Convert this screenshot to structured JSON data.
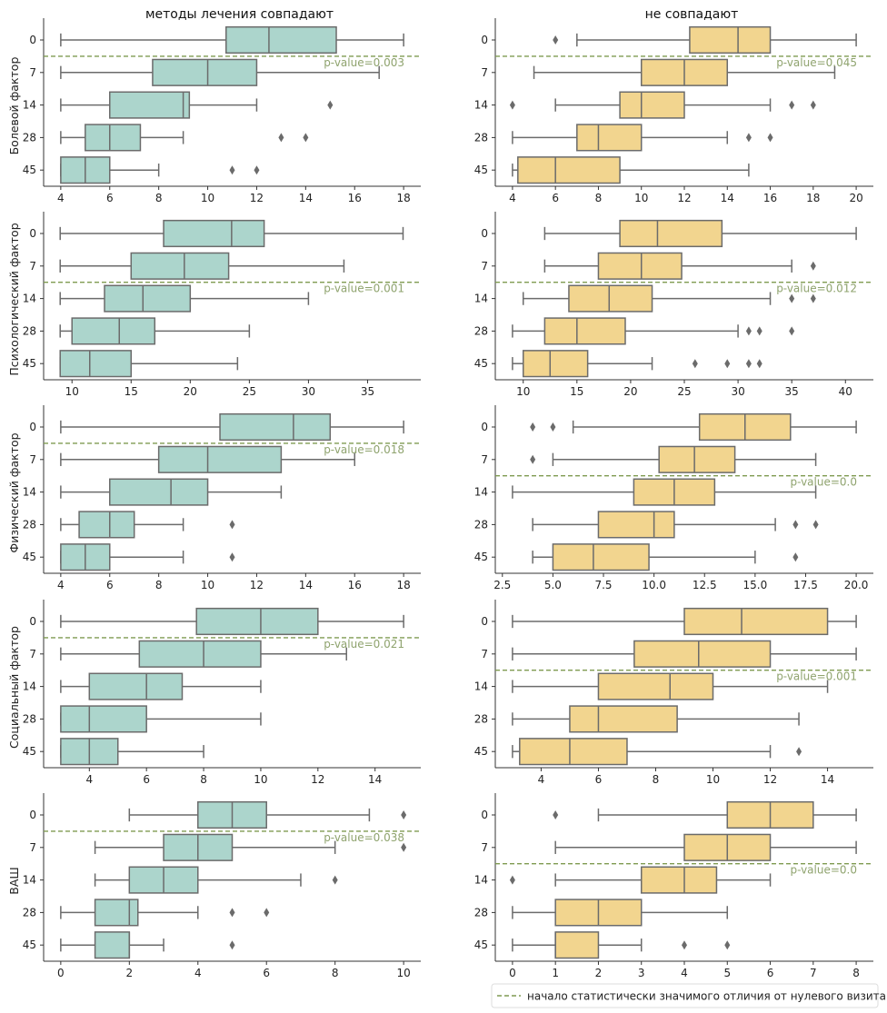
{
  "colors": {
    "left_box": "#acd5cc",
    "right_box": "#f2d58f",
    "edge": "#6b6b6b",
    "significance_line": "#7f9a50",
    "pvalue_text": "#8fa36e"
  },
  "legend": {
    "label": "начало статистически значимого отличия от нулевого визита",
    "placement": "bottom-right"
  },
  "chart_data": [
    {
      "type": "box",
      "column": "left",
      "title": "методы лечения совпадают",
      "ylabel": "Болевой фактор",
      "categories": [
        "0",
        "7",
        "14",
        "28",
        "45"
      ],
      "xlim": [
        3.3,
        18.7
      ],
      "xticks": [
        4,
        6,
        8,
        10,
        12,
        14,
        16,
        18
      ],
      "significance_after": "0",
      "pvalue_label": "p-value=0.003",
      "boxes": [
        {
          "whislo": 4,
          "q1": 10.75,
          "med": 12.5,
          "q3": 15.25,
          "whishi": 18,
          "fliers": []
        },
        {
          "whislo": 4,
          "q1": 7.75,
          "med": 10,
          "q3": 12,
          "whishi": 17,
          "fliers": []
        },
        {
          "whislo": 4,
          "q1": 6,
          "med": 9,
          "q3": 9.25,
          "whishi": 12,
          "fliers": [
            15
          ]
        },
        {
          "whislo": 4,
          "q1": 5,
          "med": 6,
          "q3": 7.25,
          "whishi": 9,
          "fliers": [
            13,
            14
          ]
        },
        {
          "whislo": 4,
          "q1": 4,
          "med": 5,
          "q3": 6,
          "whishi": 8,
          "fliers": [
            11,
            12
          ]
        }
      ]
    },
    {
      "type": "box",
      "column": "right",
      "title": "не совпадают",
      "ylabel": "",
      "categories": [
        "0",
        "7",
        "14",
        "28",
        "45"
      ],
      "xlim": [
        3.2,
        20.8
      ],
      "xticks": [
        4,
        6,
        8,
        10,
        12,
        14,
        16,
        18,
        20
      ],
      "significance_after": "0",
      "pvalue_label": "p-value=0.045",
      "boxes": [
        {
          "whislo": 7,
          "q1": 12.25,
          "med": 14.5,
          "q3": 16,
          "whishi": 20,
          "fliers": [
            6
          ]
        },
        {
          "whislo": 5,
          "q1": 10,
          "med": 12,
          "q3": 14,
          "whishi": 19,
          "fliers": []
        },
        {
          "whislo": 6,
          "q1": 9,
          "med": 10,
          "q3": 12,
          "whishi": 16,
          "fliers": [
            4,
            17,
            18
          ]
        },
        {
          "whislo": 4,
          "q1": 7,
          "med": 8,
          "q3": 10,
          "whishi": 14,
          "fliers": [
            15,
            16
          ]
        },
        {
          "whislo": 4,
          "q1": 4.25,
          "med": 6,
          "q3": 9,
          "whishi": 15,
          "fliers": []
        }
      ]
    },
    {
      "type": "box",
      "column": "left",
      "title": "",
      "ylabel": "Психологический фактор",
      "categories": [
        "0",
        "7",
        "14",
        "28",
        "45"
      ],
      "xlim": [
        7.6,
        39.5
      ],
      "xticks": [
        10,
        15,
        20,
        25,
        30,
        35
      ],
      "significance_after": "7",
      "pvalue_label": "p-value=0.001",
      "boxes": [
        {
          "whislo": 9,
          "q1": 17.75,
          "med": 23.5,
          "q3": 26.25,
          "whishi": 38,
          "fliers": []
        },
        {
          "whislo": 9,
          "q1": 15,
          "med": 19.5,
          "q3": 23.25,
          "whishi": 33,
          "fliers": []
        },
        {
          "whislo": 9,
          "q1": 12.75,
          "med": 16,
          "q3": 20,
          "whishi": 30,
          "fliers": []
        },
        {
          "whislo": 9,
          "q1": 10,
          "med": 14,
          "q3": 17,
          "whishi": 25,
          "fliers": []
        },
        {
          "whislo": 9,
          "q1": 9,
          "med": 11.5,
          "q3": 15,
          "whishi": 24,
          "fliers": []
        }
      ]
    },
    {
      "type": "box",
      "column": "right",
      "title": "",
      "ylabel": "",
      "categories": [
        "0",
        "7",
        "14",
        "28",
        "45"
      ],
      "xlim": [
        7.4,
        42.6
      ],
      "xticks": [
        10,
        15,
        20,
        25,
        30,
        35,
        40
      ],
      "significance_after": "7",
      "pvalue_label": "p-value=0.012",
      "boxes": [
        {
          "whislo": 12,
          "q1": 19,
          "med": 22.5,
          "q3": 28.5,
          "whishi": 41,
          "fliers": []
        },
        {
          "whislo": 12,
          "q1": 17,
          "med": 21,
          "q3": 24.75,
          "whishi": 35,
          "fliers": [
            37
          ]
        },
        {
          "whislo": 10,
          "q1": 14.25,
          "med": 18,
          "q3": 22,
          "whishi": 33,
          "fliers": [
            35,
            37
          ]
        },
        {
          "whislo": 9,
          "q1": 12,
          "med": 15,
          "q3": 19.5,
          "whishi": 30,
          "fliers": [
            31,
            32,
            35
          ]
        },
        {
          "whislo": 9,
          "q1": 10,
          "med": 12.5,
          "q3": 16,
          "whishi": 22,
          "fliers": [
            26,
            29,
            31,
            32
          ]
        }
      ]
    },
    {
      "type": "box",
      "column": "left",
      "title": "",
      "ylabel": "Физический фактор",
      "categories": [
        "0",
        "7",
        "14",
        "28",
        "45"
      ],
      "xlim": [
        3.3,
        18.7
      ],
      "xticks": [
        4,
        6,
        8,
        10,
        12,
        14,
        16,
        18
      ],
      "significance_after": "0",
      "pvalue_label": "p-value=0.018",
      "boxes": [
        {
          "whislo": 4,
          "q1": 10.5,
          "med": 13.5,
          "q3": 15,
          "whishi": 18,
          "fliers": []
        },
        {
          "whislo": 4,
          "q1": 8,
          "med": 10,
          "q3": 13,
          "whishi": 16,
          "fliers": []
        },
        {
          "whislo": 4,
          "q1": 6,
          "med": 8.5,
          "q3": 10,
          "whishi": 13,
          "fliers": []
        },
        {
          "whislo": 4,
          "q1": 4.75,
          "med": 6,
          "q3": 7,
          "whishi": 9,
          "fliers": [
            11
          ]
        },
        {
          "whislo": 4,
          "q1": 4,
          "med": 5,
          "q3": 6,
          "whishi": 9,
          "fliers": [
            11
          ]
        }
      ]
    },
    {
      "type": "box",
      "column": "right",
      "title": "",
      "ylabel": "",
      "categories": [
        "0",
        "7",
        "14",
        "28",
        "45"
      ],
      "xlim": [
        2.15,
        20.85
      ],
      "xticks": [
        2.5,
        5.0,
        7.5,
        10.0,
        12.5,
        15.0,
        17.5,
        20.0
      ],
      "significance_after": "7",
      "pvalue_label": "p-value=0.0",
      "boxes": [
        {
          "whislo": 6,
          "q1": 12.25,
          "med": 14.5,
          "q3": 16.75,
          "whishi": 20,
          "fliers": [
            4,
            5
          ]
        },
        {
          "whislo": 5,
          "q1": 10.25,
          "med": 12,
          "q3": 14,
          "whishi": 18,
          "fliers": [
            4
          ]
        },
        {
          "whislo": 3,
          "q1": 9,
          "med": 11,
          "q3": 13,
          "whishi": 18,
          "fliers": []
        },
        {
          "whislo": 4,
          "q1": 7.25,
          "med": 10,
          "q3": 11,
          "whishi": 16,
          "fliers": [
            17,
            18
          ]
        },
        {
          "whislo": 4,
          "q1": 5,
          "med": 7,
          "q3": 9.75,
          "whishi": 15,
          "fliers": [
            17
          ]
        }
      ]
    },
    {
      "type": "box",
      "column": "left",
      "title": "",
      "ylabel": "Социальный фактор",
      "categories": [
        "0",
        "7",
        "14",
        "28",
        "45"
      ],
      "xlim": [
        2.4,
        15.6
      ],
      "xticks": [
        4,
        6,
        8,
        10,
        12,
        14
      ],
      "significance_after": "0",
      "pvalue_label": "p-value=0.021",
      "boxes": [
        {
          "whislo": 3,
          "q1": 7.75,
          "med": 10,
          "q3": 12,
          "whishi": 15,
          "fliers": []
        },
        {
          "whislo": 3,
          "q1": 5.75,
          "med": 8,
          "q3": 10,
          "whishi": 13,
          "fliers": []
        },
        {
          "whislo": 3,
          "q1": 4,
          "med": 6,
          "q3": 7.25,
          "whishi": 10,
          "fliers": []
        },
        {
          "whislo": 3,
          "q1": 3,
          "med": 4,
          "q3": 6,
          "whishi": 10,
          "fliers": []
        },
        {
          "whislo": 3,
          "q1": 3,
          "med": 4,
          "q3": 5,
          "whishi": 8,
          "fliers": []
        }
      ]
    },
    {
      "type": "box",
      "column": "right",
      "title": "",
      "ylabel": "",
      "categories": [
        "0",
        "7",
        "14",
        "28",
        "45"
      ],
      "xlim": [
        2.4,
        15.6
      ],
      "xticks": [
        4,
        6,
        8,
        10,
        12,
        14
      ],
      "significance_after": "7",
      "pvalue_label": "p-value=0.001",
      "boxes": [
        {
          "whislo": 3,
          "q1": 9,
          "med": 11,
          "q3": 14,
          "whishi": 15,
          "fliers": []
        },
        {
          "whislo": 3,
          "q1": 7.25,
          "med": 9.5,
          "q3": 12,
          "whishi": 15,
          "fliers": []
        },
        {
          "whislo": 3,
          "q1": 6,
          "med": 8.5,
          "q3": 10,
          "whishi": 14,
          "fliers": []
        },
        {
          "whislo": 3,
          "q1": 5,
          "med": 6,
          "q3": 8.75,
          "whishi": 13,
          "fliers": []
        },
        {
          "whislo": 3,
          "q1": 3.25,
          "med": 5,
          "q3": 7,
          "whishi": 12,
          "fliers": [
            13
          ]
        }
      ]
    },
    {
      "type": "box",
      "column": "left",
      "title": "",
      "ylabel": "ВАШ",
      "categories": [
        "0",
        "7",
        "14",
        "28",
        "45"
      ],
      "xlim": [
        -0.5,
        10.5
      ],
      "xticks": [
        0,
        2,
        4,
        6,
        8,
        10
      ],
      "significance_after": "0",
      "pvalue_label": "p-value=0.038",
      "boxes": [
        {
          "whislo": 2,
          "q1": 4,
          "med": 5,
          "q3": 6,
          "whishi": 9,
          "fliers": [
            10
          ]
        },
        {
          "whislo": 1,
          "q1": 3,
          "med": 4,
          "q3": 5,
          "whishi": 8,
          "fliers": [
            10
          ]
        },
        {
          "whislo": 1,
          "q1": 2,
          "med": 3,
          "q3": 4,
          "whishi": 7,
          "fliers": [
            8
          ]
        },
        {
          "whislo": 0,
          "q1": 1,
          "med": 2,
          "q3": 2.25,
          "whishi": 4,
          "fliers": [
            5,
            6
          ]
        },
        {
          "whislo": 0,
          "q1": 1,
          "med": 2,
          "q3": 2,
          "whishi": 3,
          "fliers": [
            5
          ]
        }
      ]
    },
    {
      "type": "box",
      "column": "right",
      "title": "",
      "ylabel": "",
      "categories": [
        "0",
        "7",
        "14",
        "28",
        "45"
      ],
      "xlim": [
        -0.4,
        8.4
      ],
      "xticks": [
        0,
        1,
        2,
        3,
        4,
        5,
        6,
        7,
        8
      ],
      "significance_after": "7",
      "pvalue_label": "p-value=0.0",
      "boxes": [
        {
          "whislo": 2,
          "q1": 5,
          "med": 6,
          "q3": 7,
          "whishi": 8,
          "fliers": [
            1
          ]
        },
        {
          "whislo": 1,
          "q1": 4,
          "med": 5,
          "q3": 6,
          "whishi": 8,
          "fliers": []
        },
        {
          "whislo": 1,
          "q1": 3,
          "med": 4,
          "q3": 4.75,
          "whishi": 6,
          "fliers": [
            0
          ]
        },
        {
          "whislo": 0,
          "q1": 1,
          "med": 2,
          "q3": 3,
          "whishi": 5,
          "fliers": []
        },
        {
          "whislo": 0,
          "q1": 1,
          "med": 1,
          "q3": 2,
          "whishi": 3,
          "fliers": [
            4,
            5
          ]
        }
      ]
    }
  ]
}
